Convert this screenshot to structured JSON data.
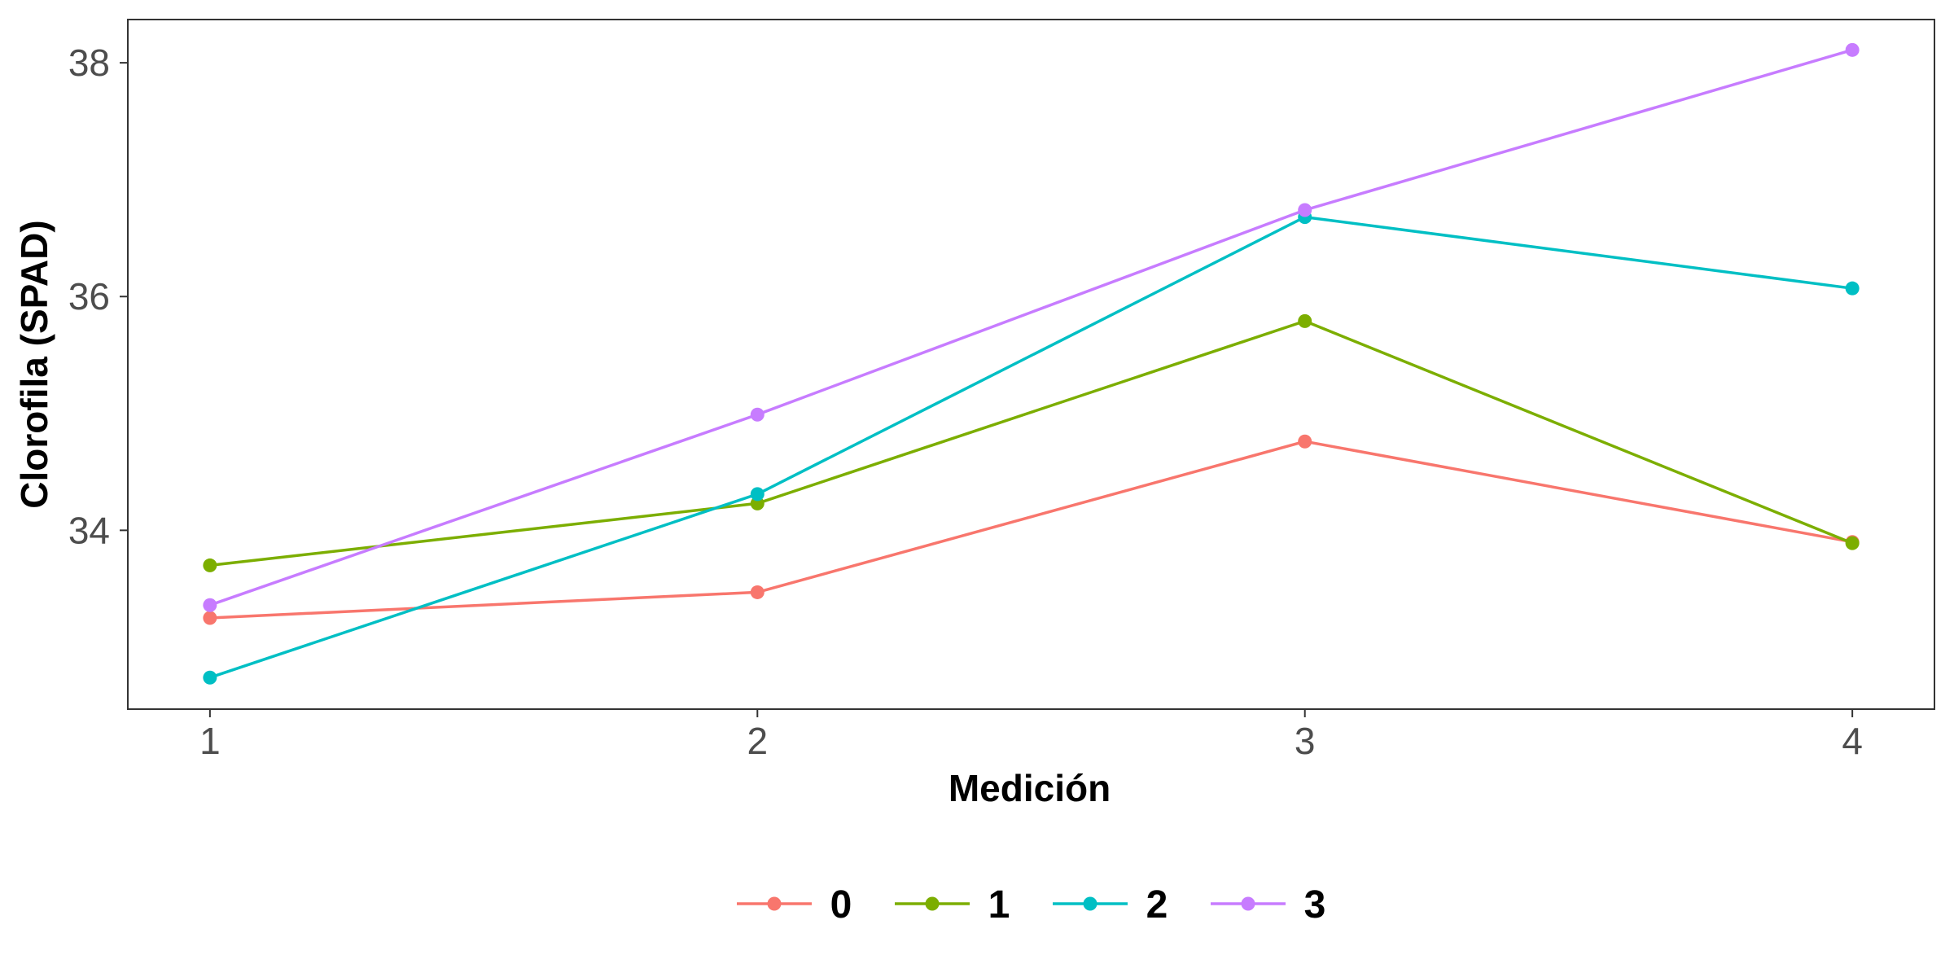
{
  "chart_data": {
    "type": "line",
    "xlabel": "Medición",
    "ylabel": "Clorofila (SPAD)",
    "x": [
      1,
      2,
      3,
      4
    ],
    "x_ticks": [
      "1",
      "2",
      "3",
      "4"
    ],
    "y_ticks": [
      "34",
      "36",
      "38"
    ],
    "y_tick_values": [
      34,
      36,
      38
    ],
    "xlim": [
      0.85,
      4.15
    ],
    "ylim": [
      32.47,
      38.37
    ],
    "grid": false,
    "legend_position": "bottom",
    "series": [
      {
        "name": "0",
        "color": "#F8766D",
        "values": [
          33.25,
          33.47,
          34.76,
          33.9
        ]
      },
      {
        "name": "1",
        "color": "#7CAE00",
        "values": [
          33.7,
          34.23,
          35.79,
          33.89
        ]
      },
      {
        "name": "2",
        "color": "#00BFC4",
        "values": [
          32.74,
          34.31,
          36.68,
          36.07
        ]
      },
      {
        "name": "3",
        "color": "#C77CFF",
        "values": [
          33.36,
          34.99,
          36.74,
          38.11
        ]
      }
    ]
  }
}
